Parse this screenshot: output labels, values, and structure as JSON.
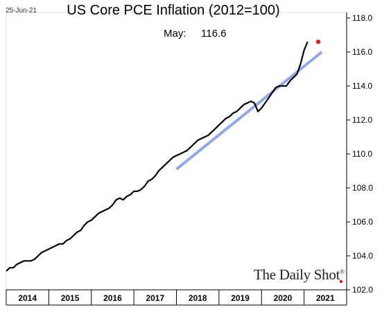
{
  "date_stamp": "25-Jun-21",
  "latest": {
    "label": "May:",
    "value": "116.6"
  },
  "watermark": {
    "text": "The Daily Shot",
    "mark": "®",
    "dot_color": "#e8201c"
  },
  "chart_data": {
    "type": "line",
    "title": "US Core PCE Inflation (2012=100)",
    "xlabel": "",
    "ylabel": "",
    "x_categories": [
      "2014",
      "2015",
      "2016",
      "2017",
      "2018",
      "2019",
      "2020",
      "2021"
    ],
    "ylim": [
      102,
      118
    ],
    "yticks": [
      "102.0",
      "104.0",
      "106.0",
      "108.0",
      "110.0",
      "112.0",
      "114.0",
      "116.0",
      "118.0"
    ],
    "grid": false,
    "series": [
      {
        "type": "line",
        "color": "#000000",
        "x_start": "2014-01",
        "frequency": "monthly",
        "values": [
          103.1,
          103.3,
          103.3,
          103.5,
          103.6,
          103.7,
          103.7,
          103.7,
          103.8,
          104.0,
          104.2,
          104.3,
          104.4,
          104.5,
          104.6,
          104.7,
          104.7,
          104.9,
          105.0,
          105.2,
          105.4,
          105.5,
          105.8,
          106.0,
          106.1,
          106.3,
          106.5,
          106.6,
          106.7,
          106.8,
          107.0,
          107.3,
          107.4,
          107.3,
          107.5,
          107.6,
          107.8,
          107.8,
          107.9,
          108.1,
          108.4,
          108.5,
          108.7,
          109.0,
          109.2,
          109.4,
          109.6,
          109.8,
          109.9,
          110.0,
          110.1,
          110.2,
          110.4,
          110.6,
          110.8,
          110.9,
          111.0,
          111.1,
          111.3,
          111.5,
          111.7,
          111.9,
          112.1,
          112.2,
          112.4,
          112.5,
          112.7,
          112.9,
          113.0,
          113.1,
          113.0,
          112.5,
          112.7,
          113.0,
          113.3,
          113.6,
          113.9,
          114.0,
          114.0,
          114.0,
          114.3,
          114.5,
          114.7,
          115.3,
          116.1,
          116.6
        ]
      },
      {
        "type": "trend",
        "color": "#8ea8ee",
        "points": [
          {
            "x": "2018-01",
            "y": 109.1
          },
          {
            "x": "2021-06",
            "y": 116.0
          }
        ]
      }
    ],
    "highlight": {
      "x": "2021-05",
      "y": 116.6,
      "color": "#e8201c"
    }
  }
}
